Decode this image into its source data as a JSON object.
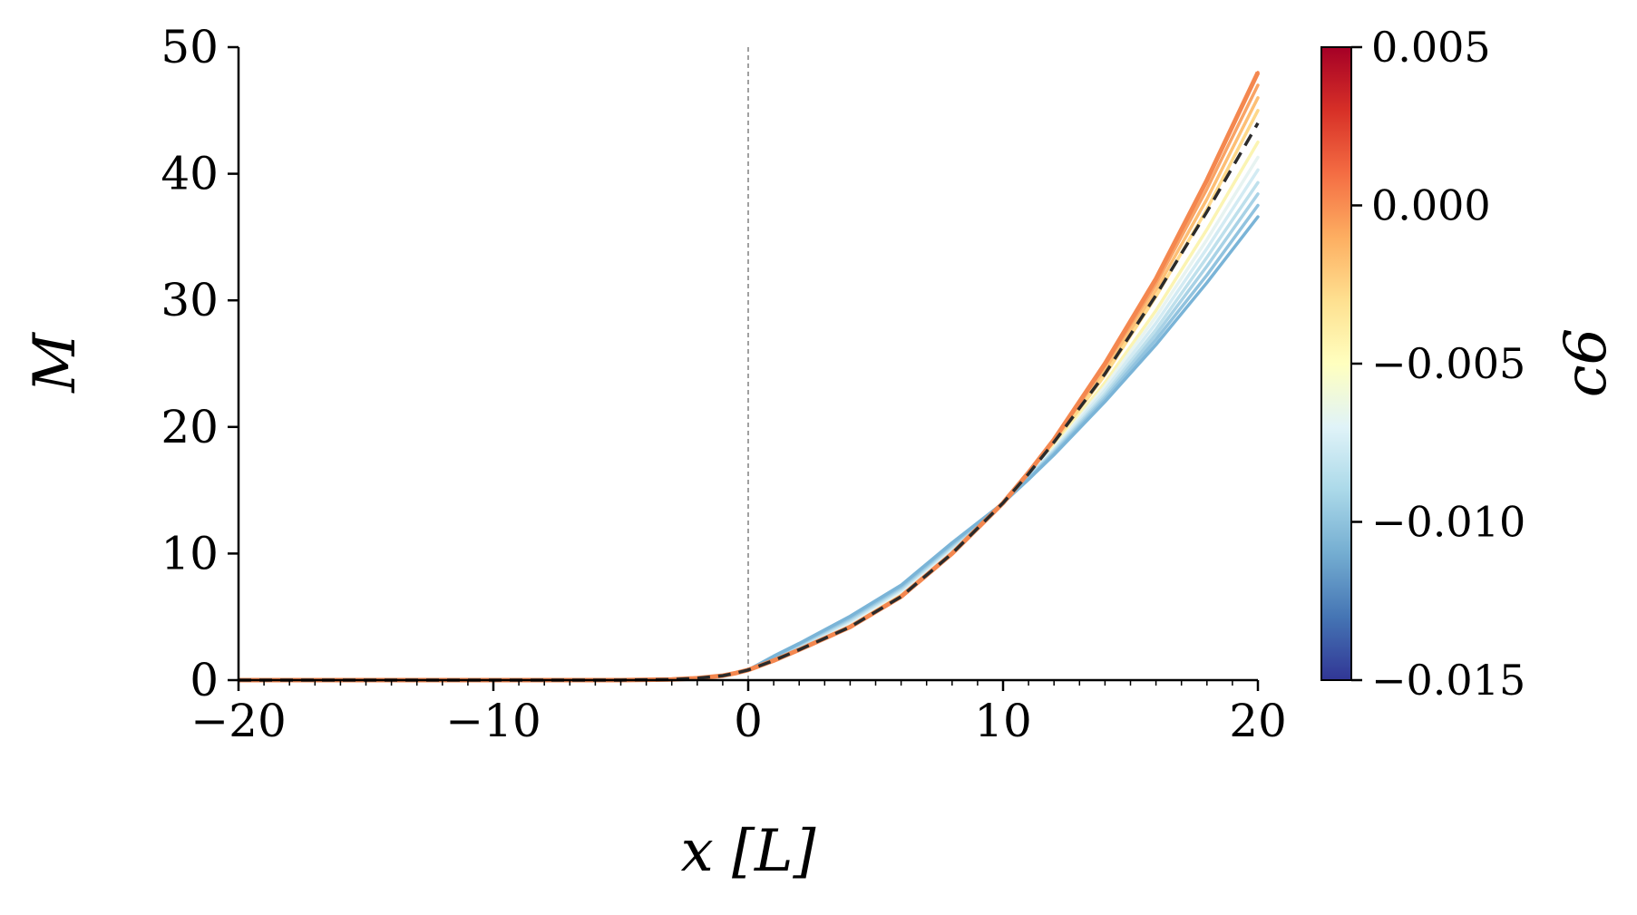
{
  "chart_data": {
    "type": "line",
    "title": "",
    "xlabel": "x [L]",
    "ylabel": "M",
    "xlim": [
      -20,
      20
    ],
    "ylim": [
      0,
      50
    ],
    "xticks": [
      -20,
      -10,
      0,
      10,
      20
    ],
    "yticks": [
      0,
      10,
      20,
      30,
      40,
      50
    ],
    "xtick_labels": [
      "−20",
      "−10",
      "0",
      "10",
      "20"
    ],
    "ytick_labels": [
      "0",
      "10",
      "20",
      "30",
      "40",
      "50"
    ],
    "grid": false,
    "vertical_reference_line": {
      "x": 0,
      "style": "dashed",
      "color": "#808080"
    },
    "colorbar": {
      "label": "c6",
      "colormap": "RdYlBu_r",
      "range": [
        -0.015,
        0.005
      ],
      "ticks": [
        0.005,
        0.0,
        -0.005,
        -0.01,
        -0.015
      ],
      "tick_labels": [
        "0.005",
        "0.000",
        "−0.005",
        "−0.010",
        "−0.015"
      ],
      "position": "right"
    },
    "x": [
      -20,
      -15,
      -10,
      -5,
      -3,
      -2,
      -1,
      -0.5,
      0,
      1,
      2,
      4,
      6,
      8,
      10,
      11,
      12,
      14,
      16,
      18,
      20
    ],
    "series": [
      {
        "c6": 0.0,
        "color": "#f4874f",
        "values": [
          0,
          0,
          0,
          0,
          0.05,
          0.15,
          0.35,
          0.55,
          0.8,
          1.55,
          2.4,
          4.2,
          6.6,
          10.0,
          14.0,
          16.4,
          19.0,
          25.0,
          31.7,
          39.5,
          48.0
        ]
      },
      {
        "c6": -0.001,
        "color": "#f9a466",
        "values": [
          0,
          0,
          0,
          0,
          0.05,
          0.15,
          0.35,
          0.55,
          0.8,
          1.55,
          2.4,
          4.25,
          6.65,
          10.05,
          14.0,
          16.35,
          18.9,
          24.7,
          31.3,
          38.8,
          47.0
        ]
      },
      {
        "c6": -0.002,
        "color": "#fdbf75",
        "values": [
          0,
          0,
          0,
          0,
          0.05,
          0.15,
          0.35,
          0.55,
          0.8,
          1.55,
          2.45,
          4.3,
          6.7,
          10.1,
          14.0,
          16.3,
          18.8,
          24.4,
          30.8,
          38.0,
          46.0
        ]
      },
      {
        "c6": -0.003,
        "color": "#fed88a",
        "values": [
          0,
          0,
          0,
          0,
          0.05,
          0.15,
          0.35,
          0.55,
          0.8,
          1.6,
          2.5,
          4.35,
          6.75,
          10.15,
          14.0,
          16.25,
          18.7,
          24.1,
          30.3,
          37.2,
          45.0
        ]
      },
      {
        "c6": -0.005,
        "color": "#fbf4b3",
        "values": [
          0,
          0,
          0,
          0,
          0.05,
          0.15,
          0.35,
          0.55,
          0.8,
          1.6,
          2.55,
          4.45,
          6.9,
          10.25,
          14.0,
          16.15,
          18.45,
          23.5,
          29.2,
          35.6,
          42.5
        ]
      },
      {
        "c6": -0.006,
        "color": "#e7f3f1",
        "values": [
          0,
          0,
          0,
          0,
          0.05,
          0.15,
          0.35,
          0.55,
          0.8,
          1.65,
          2.6,
          4.55,
          7.0,
          10.35,
          14.0,
          16.1,
          18.3,
          23.2,
          28.7,
          34.8,
          41.3
        ]
      },
      {
        "c6": -0.007,
        "color": "#d3ebf3",
        "values": [
          0,
          0,
          0,
          0,
          0.05,
          0.15,
          0.35,
          0.55,
          0.8,
          1.7,
          2.65,
          4.65,
          7.1,
          10.45,
          14.0,
          16.05,
          18.2,
          22.9,
          28.2,
          34.1,
          40.3
        ]
      },
      {
        "c6": -0.008,
        "color": "#bee0ec",
        "values": [
          0,
          0,
          0,
          0,
          0.05,
          0.15,
          0.35,
          0.55,
          0.8,
          1.75,
          2.7,
          4.75,
          7.2,
          10.55,
          14.0,
          16.0,
          18.1,
          22.6,
          27.7,
          33.4,
          39.3
        ]
      },
      {
        "c6": -0.009,
        "color": "#a8d2e6",
        "values": [
          0,
          0,
          0,
          0,
          0.05,
          0.15,
          0.35,
          0.55,
          0.8,
          1.8,
          2.8,
          4.85,
          7.3,
          10.65,
          14.0,
          15.95,
          18.0,
          22.4,
          27.3,
          32.7,
          38.4
        ]
      },
      {
        "c6": -0.01,
        "color": "#91c3df",
        "values": [
          0,
          0,
          0,
          0,
          0.05,
          0.15,
          0.35,
          0.55,
          0.8,
          1.85,
          2.85,
          4.95,
          7.4,
          10.75,
          14.0,
          15.9,
          17.9,
          22.2,
          26.9,
          32.0,
          37.5
        ]
      },
      {
        "c6": -0.011,
        "color": "#7ab4d7",
        "values": [
          0,
          0,
          0,
          0,
          0.05,
          0.15,
          0.35,
          0.55,
          0.8,
          1.9,
          2.9,
          5.05,
          7.5,
          10.85,
          14.0,
          15.85,
          17.8,
          22.0,
          26.5,
          31.4,
          36.6
        ]
      }
    ],
    "reference_series": {
      "style": "dashed",
      "color": "#2b2b2b",
      "values": [
        0,
        0,
        0,
        0,
        0.05,
        0.15,
        0.35,
        0.55,
        0.8,
        1.55,
        2.4,
        4.2,
        6.6,
        10.0,
        14.0,
        16.3,
        18.8,
        24.2,
        30.4,
        37.0,
        44.0
      ]
    }
  }
}
